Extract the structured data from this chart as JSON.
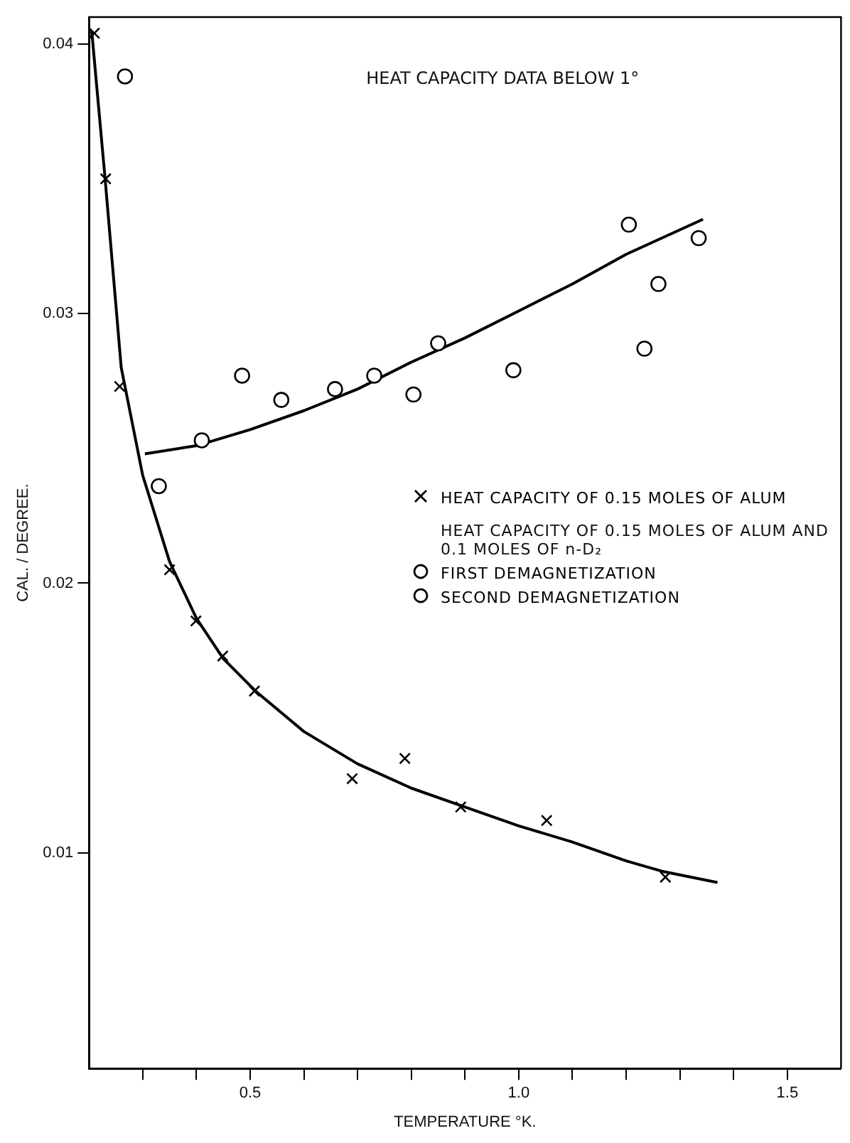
{
  "chart_data": {
    "type": "scatter",
    "title": "HEAT CAPACITY DATA BELOW 1°",
    "xlabel": "TEMPERATURE °K.",
    "ylabel": "CAL. / DEGREE.",
    "annotations": [
      "HEAT CAPACITY OF 0.15 MOLES OF ALUM AND 0.1 MOLES OF n-D₂"
    ],
    "xlim": [
      0.2,
      1.6
    ],
    "ylim": [
      0.002,
      0.041
    ],
    "xticks": [
      {
        "value": 0.3,
        "label": null
      },
      {
        "value": 0.4,
        "label": null
      },
      0.5,
      {
        "value": 0.6,
        "label": null
      },
      {
        "value": 0.7,
        "label": null
      },
      {
        "value": 0.8,
        "label": null
      },
      {
        "value": 0.9,
        "label": null
      },
      {
        "value": 1,
        "label": "1.0"
      },
      {
        "value": 1.1,
        "label": null
      },
      {
        "value": 1.2,
        "label": null
      },
      {
        "value": 1.3,
        "label": null
      },
      {
        "value": 1.4,
        "label": null
      },
      1.5
    ],
    "yticks": [
      0.01,
      0.02,
      0.03,
      0.04
    ],
    "grid": false,
    "legend": "right",
    "series": [
      {
        "name": "HEAT CAPACITY OF 0.15 MOLES OF ALUM",
        "color": "#000000",
        "marker": "cross",
        "x": [
          0.21,
          0.231,
          0.257,
          0.35,
          0.399,
          0.449,
          0.508,
          0.69,
          0.788,
          0.892,
          1.052,
          1.273
        ],
        "values": [
          0.0404,
          0.035,
          0.0273,
          0.0205,
          0.0186,
          0.0173,
          0.016,
          0.01275,
          0.0135,
          0.0117,
          0.0112,
          0.0091
        ]
      },
      {
        "name": "FIRST DEMAGNETIZATION",
        "color": "#000000",
        "marker": "circle",
        "x": [
          0.731,
          0.85,
          0.99,
          1.205,
          1.26
        ],
        "values": [
          0.0277,
          0.0289,
          0.0279,
          0.0333,
          0.0311
        ]
      },
      {
        "name": "SECOND DEMAGNETIZATION",
        "color": "#000000",
        "marker": "circle",
        "x": [
          0.267,
          0.33,
          0.41,
          0.485,
          0.558,
          0.658,
          0.804,
          1.234,
          1.335
        ],
        "values": [
          0.0388,
          0.0236,
          0.0253,
          0.0277,
          0.0268,
          0.0272,
          0.027,
          0.0287,
          0.0328
        ]
      },
      {
        "type": "line",
        "color": "#000000",
        "marker": "none",
        "x": [
          0.205,
          0.23,
          0.26,
          0.3,
          0.35,
          0.4,
          0.45,
          0.51,
          0.6,
          0.7,
          0.8,
          0.9,
          1.0,
          1.1,
          1.2,
          1.27,
          1.37
        ],
        "values": [
          0.0405,
          0.035,
          0.028,
          0.024,
          0.0208,
          0.0187,
          0.0172,
          0.016,
          0.0145,
          0.0133,
          0.0124,
          0.0117,
          0.011,
          0.0104,
          0.0097,
          0.0093,
          0.0089
        ]
      },
      {
        "type": "line",
        "color": "#000000",
        "marker": "none",
        "x": [
          0.304,
          0.4,
          0.5,
          0.6,
          0.7,
          0.8,
          0.9,
          1.0,
          1.1,
          1.2,
          1.343
        ],
        "values": [
          0.0248,
          0.0251,
          0.0257,
          0.0264,
          0.0272,
          0.0282,
          0.0291,
          0.0301,
          0.0311,
          0.0322,
          0.0335
        ]
      }
    ]
  }
}
